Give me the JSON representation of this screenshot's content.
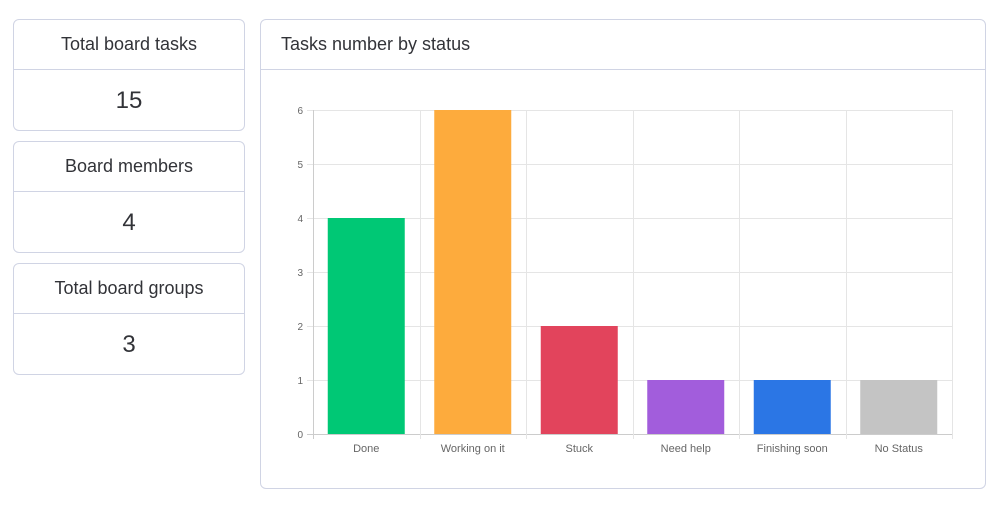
{
  "stats": [
    {
      "title": "Total board tasks",
      "value": "15"
    },
    {
      "title": "Board members",
      "value": "4"
    },
    {
      "title": "Total board groups",
      "value": "3"
    }
  ],
  "chart": {
    "title": "Tasks number by status"
  },
  "chart_data": {
    "type": "bar",
    "title": "Tasks number by status",
    "categories": [
      "Done",
      "Working on it",
      "Stuck",
      "Need help",
      "Finishing soon",
      "No Status"
    ],
    "values": [
      4,
      6,
      2,
      1,
      1,
      1
    ],
    "colors": [
      "#00c875",
      "#fdab3d",
      "#e2445c",
      "#a25ddc",
      "#2b76e5",
      "#c4c4c4"
    ],
    "ylim": [
      0,
      6
    ],
    "yticks": [
      0,
      1,
      2,
      3,
      4,
      5,
      6
    ],
    "grid": true,
    "xlabel": "",
    "ylabel": ""
  }
}
